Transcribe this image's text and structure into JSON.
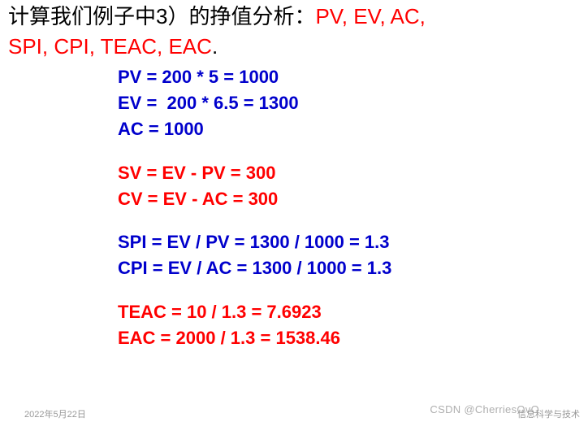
{
  "title": {
    "part1_black": "计算我们例子中3）的挣值分析：",
    "part1_red": "PV, EV, AC,",
    "part2_red": "SPI, CPI, TEAC, EAC",
    "part2_black_period": "."
  },
  "calc": {
    "pv": "PV = 200 * 5 = 1000",
    "ev": "EV =  200 * 6.5 = 1300",
    "ac": "AC = 1000",
    "sv": "SV = EV - PV = 300",
    "cv": "CV = EV - AC = 300",
    "spi": "SPI = EV / PV = 1300 / 1000 = 1.3",
    "cpi": "CPI = EV / AC = 1300 / 1000 = 1.3",
    "teac": "TEAC = 10 / 1.3 = 7.6923",
    "eac": "EAC = 2000 / 1.3 = 1538.46"
  },
  "colors": {
    "blue": "#0000cc",
    "red": "#ff0000",
    "black": "#000000",
    "background": "#ffffff"
  },
  "typography": {
    "title_fontsize": 26,
    "calc_fontsize": 22,
    "calc_fontweight": "bold"
  },
  "footer": {
    "left": "2022年5月22日",
    "right": "信息科学与技术"
  },
  "watermark": "CSDN @CherriesOvO"
}
